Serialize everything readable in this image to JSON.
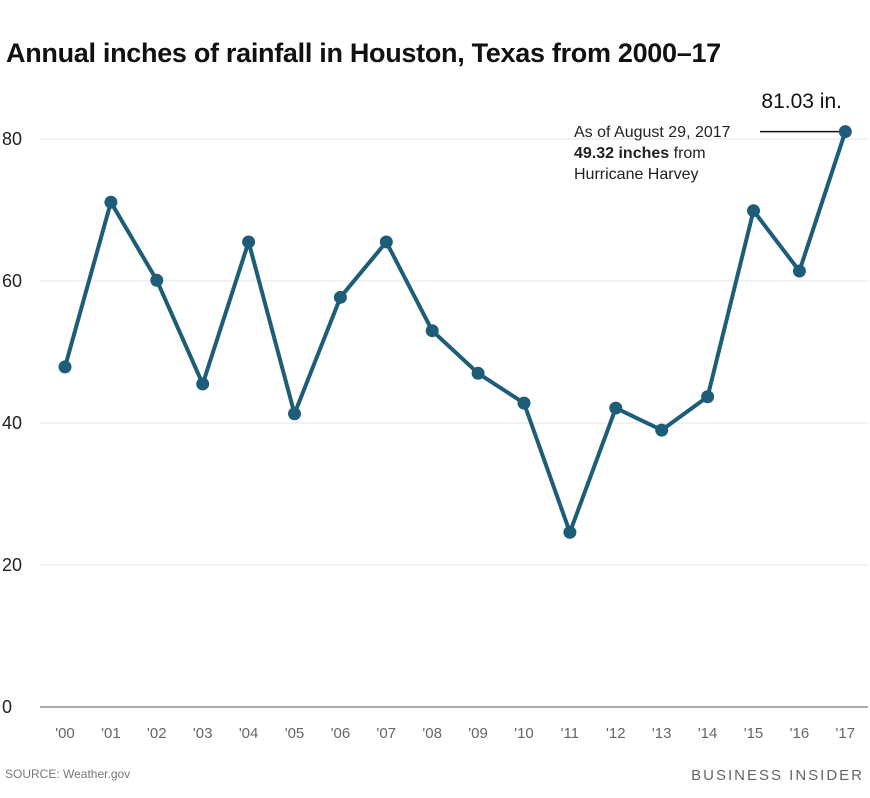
{
  "chart_data": {
    "type": "line",
    "title": "Annual inches of rainfall in Houston, Texas from 2000–17",
    "xlabel": "",
    "ylabel": "",
    "categories": [
      "'00",
      "'01",
      "'02",
      "'03",
      "'04",
      "'05",
      "'06",
      "'07",
      "'08",
      "'09",
      "'10",
      "'11",
      "'12",
      "'13",
      "'14",
      "'15",
      "'16",
      "'17"
    ],
    "values": [
      47.9,
      71.1,
      60.1,
      45.5,
      65.5,
      41.3,
      57.7,
      65.5,
      53.0,
      47.0,
      42.8,
      24.6,
      42.1,
      39.0,
      43.7,
      69.9,
      61.4,
      81.03
    ],
    "ylim": [
      0,
      80
    ],
    "yticks": [
      0,
      20,
      40,
      60,
      80
    ],
    "grid": true,
    "line_color": "#1e5d78",
    "annotation": {
      "value_label": "81.03 in.",
      "line1": "As of August 29, 2017",
      "bold": "49.32 inches",
      "line2_rest": " from",
      "line3": "Hurricane Harvey"
    }
  },
  "footer": {
    "source": "SOURCE: Weather.gov",
    "brand": "BUSINESS INSIDER"
  }
}
